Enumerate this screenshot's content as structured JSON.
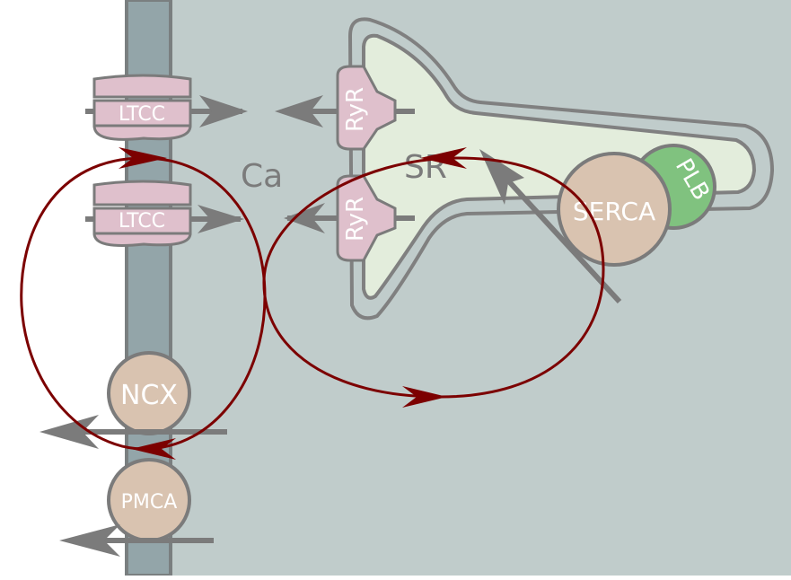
{
  "labels": {
    "ca": "Ca",
    "sr": "SR",
    "ltcc_top": "LTCC",
    "ltcc_bottom": "LTCC",
    "ryr_top": "RyR",
    "ryr_bottom": "RyR",
    "serca": "SERCA",
    "plb": "PLB",
    "ncx": "NCX",
    "pmca": "PMCA"
  },
  "colors": {
    "cytosol": "#c0cccb",
    "membrane": "#93a5a9",
    "membrane_edge": "#7a7f80",
    "sr_fill": "#e3eddc",
    "sr_outline": "#808080",
    "ltcc": "#dfc0cc",
    "ryr": "#dfc0cc",
    "pump": "#d9c3b0",
    "plb": "#80c27f",
    "flux_arrow": "#7b7b7b",
    "cycle": "#7c0000",
    "label_text": "#ffffff",
    "region_text": "#7b7b7b"
  }
}
